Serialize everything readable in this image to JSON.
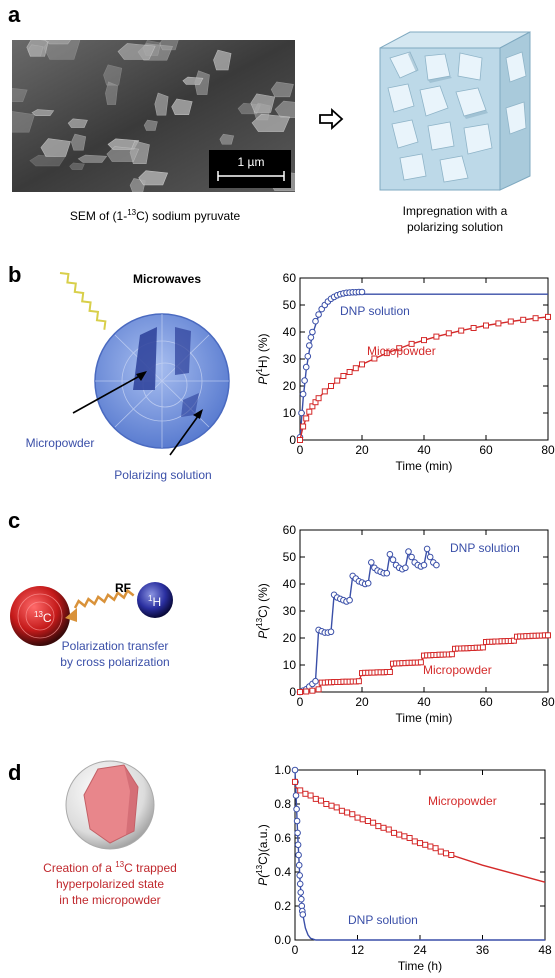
{
  "panels": {
    "a": {
      "letter": "a",
      "sem_scale": "1 µm",
      "sem_caption_pre": "SEM of (1-",
      "sem_caption_sup": "13",
      "sem_caption_post": "C) sodium pyruvate",
      "impregnation_line1": "Impregnation with a",
      "impregnation_line2": "polarizing solution"
    },
    "b": {
      "letter": "b",
      "microwaves": "Microwaves",
      "micropowder": "Micropowder",
      "polarizing_solution": "Polarizing solution"
    },
    "c": {
      "letter": "c",
      "rf": "RF",
      "carbon_label_sup": "13",
      "carbon_label": "C",
      "proton_label_sup": "1",
      "proton_label": "H",
      "transfer_line1": "Polarization transfer",
      "transfer_line2": "by cross polarization"
    },
    "d": {
      "letter": "d",
      "creation_line1_pre": "Creation of a ",
      "creation_line1_sup": "13",
      "creation_line1_post": "C trapped",
      "creation_line2": "hyperpolarized state",
      "creation_line3": "in the micropowder"
    }
  },
  "colors": {
    "dnp": "#3a4fa8",
    "micro": "#d42a2a",
    "caption_blue": "#3a4fa8",
    "caption_red": "#c0282d"
  },
  "chart_data": [
    {
      "type": "scatter",
      "id": "b",
      "ylabel_pre": "P(",
      "ylabel_sup": "1",
      "ylabel_post": "H) (%)",
      "xlabel": "Time (min)",
      "xlim": [
        0,
        80
      ],
      "ylim": [
        0,
        60
      ],
      "xticks": [
        "0",
        "20",
        "40",
        "60",
        "80"
      ],
      "yticks": [
        "0",
        "10",
        "20",
        "30",
        "40",
        "50",
        "60"
      ],
      "series": [
        {
          "name": "DNP solution",
          "x": [
            0,
            0.5,
            1,
            1.5,
            2,
            2.5,
            3,
            3.5,
            4,
            5,
            6,
            7,
            8,
            9,
            10,
            11,
            12,
            13,
            14,
            15,
            16,
            17,
            18,
            19,
            20
          ],
          "y": [
            1,
            10,
            17,
            22,
            27,
            31,
            35,
            38,
            40,
            44,
            46.5,
            48.5,
            50,
            51.3,
            52.3,
            53,
            53.6,
            54,
            54.3,
            54.5,
            54.6,
            54.7,
            54.7,
            54.8,
            54.8
          ],
          "fit_x": [
            0,
            1,
            2,
            3,
            4,
            6,
            8,
            10,
            12,
            15,
            20,
            40,
            80
          ],
          "fit_y": [
            0,
            15,
            26,
            33,
            39,
            46,
            50,
            52.3,
            53.4,
            53.9,
            54,
            54,
            54
          ]
        },
        {
          "name": "Micropowder",
          "x": [
            0,
            1,
            2,
            3,
            4,
            5,
            6,
            8,
            10,
            12,
            14,
            16,
            18,
            20,
            24,
            28,
            32,
            36,
            40,
            44,
            48,
            52,
            56,
            60,
            64,
            68,
            72,
            76,
            80
          ],
          "y": [
            0,
            5,
            8,
            10.5,
            12.5,
            14,
            15.5,
            18,
            20,
            22,
            23.7,
            25.2,
            26.6,
            28,
            30.2,
            32.2,
            34,
            35.6,
            37,
            38.3,
            39.5,
            40.5,
            41.5,
            42.4,
            43.2,
            43.9,
            44.5,
            45.1,
            45.6
          ],
          "fit_x": [
            0,
            1,
            2,
            4,
            6,
            8,
            10,
            14,
            20,
            28,
            36,
            44,
            52,
            60,
            68,
            76,
            80
          ],
          "fit_y": [
            0,
            5,
            8,
            12.5,
            15.5,
            18,
            20,
            23.7,
            28,
            32.2,
            35.6,
            38.3,
            40.5,
            42.4,
            43.9,
            45.1,
            45.6
          ]
        }
      ],
      "labels": [
        "DNP solution",
        "Micropowder"
      ]
    },
    {
      "type": "scatter",
      "id": "c",
      "ylabel_pre": "P(",
      "ylabel_sup": "13",
      "ylabel_post": "C) (%)",
      "xlabel": "Time (min)",
      "xlim": [
        0,
        80
      ],
      "ylim": [
        0,
        60
      ],
      "xticks": [
        "0",
        "20",
        "40",
        "60",
        "80"
      ],
      "yticks": [
        "0",
        "10",
        "20",
        "30",
        "40",
        "50",
        "60"
      ],
      "series": [
        {
          "name": "DNP solution",
          "x": [
            0,
            1,
            2,
            3,
            4,
            5,
            6,
            7,
            8,
            9,
            10,
            11,
            12,
            13,
            14,
            15,
            16,
            17,
            18,
            19,
            20,
            21,
            22,
            23,
            24,
            25,
            26,
            27,
            28,
            29,
            30,
            31,
            32,
            33,
            34,
            35,
            36,
            37,
            38,
            39,
            40,
            41,
            42,
            43,
            44
          ],
          "y": [
            0,
            0.5,
            1,
            2,
            3,
            4,
            23,
            22.5,
            22,
            22,
            22.3,
            36,
            35,
            34.5,
            34,
            33.5,
            34,
            43,
            42,
            41,
            40.5,
            40,
            40.3,
            48,
            46,
            45,
            44.5,
            44,
            44,
            51,
            49,
            47,
            46,
            45.5,
            46,
            52,
            50,
            48,
            47,
            46.5,
            47,
            53,
            50,
            48,
            47
          ]
        },
        {
          "name": "Micropowder",
          "x": [
            0,
            2,
            4,
            6,
            7,
            8,
            9,
            10,
            11,
            12,
            13,
            14,
            15,
            16,
            17,
            18,
            19,
            20,
            21,
            22,
            23,
            24,
            25,
            26,
            27,
            28,
            29,
            30,
            31,
            32,
            33,
            34,
            35,
            36,
            37,
            38,
            39,
            40,
            41,
            42,
            43,
            44,
            45,
            46,
            47,
            48,
            49,
            50,
            51,
            52,
            53,
            54,
            55,
            56,
            57,
            58,
            59,
            60,
            61,
            62,
            63,
            64,
            65,
            66,
            67,
            68,
            69,
            70,
            71,
            72,
            73,
            74,
            75,
            76,
            77,
            78,
            79,
            80
          ],
          "y": [
            0,
            0.2,
            0.5,
            1,
            3.5,
            3.5,
            3.6,
            3.6,
            3.7,
            3.7,
            3.7,
            3.8,
            3.8,
            3.8,
            3.9,
            3.9,
            4,
            7,
            7.1,
            7.1,
            7.2,
            7.2,
            7.3,
            7.3,
            7.3,
            7.4,
            7.4,
            10.5,
            10.6,
            10.6,
            10.7,
            10.7,
            10.8,
            10.8,
            10.9,
            10.9,
            11,
            13.5,
            13.6,
            13.6,
            13.7,
            13.7,
            13.8,
            13.8,
            13.9,
            13.9,
            14,
            16,
            16.1,
            16.1,
            16.2,
            16.2,
            16.3,
            16.3,
            16.4,
            16.4,
            16.5,
            18.5,
            18.6,
            18.6,
            18.7,
            18.7,
            18.8,
            18.8,
            18.9,
            18.9,
            19,
            20.5,
            20.6,
            20.6,
            20.7,
            20.7,
            20.8,
            20.8,
            20.9,
            20.9,
            21,
            21
          ]
        }
      ],
      "labels": [
        "DNP solution",
        "Micropowder"
      ]
    },
    {
      "type": "scatter",
      "id": "d",
      "ylabel_pre": "P(",
      "ylabel_sup": "13",
      "ylabel_post": "C)(a.u.)",
      "xlabel": "Time (h)",
      "xlim": [
        0,
        48
      ],
      "ylim": [
        0,
        1.0
      ],
      "xticks": [
        "0",
        "12",
        "24",
        "36",
        "48"
      ],
      "yticks": [
        "0.0",
        "0.2",
        "0.4",
        "0.6",
        "0.8",
        "1.0"
      ],
      "series": [
        {
          "name": "DNP solution",
          "x": [
            0,
            0.1,
            0.2,
            0.3,
            0.4,
            0.5,
            0.6,
            0.7,
            0.8,
            0.9,
            1.0,
            1.1,
            1.2,
            1.3,
            1.4,
            1.5
          ],
          "y": [
            1.0,
            0.93,
            0.85,
            0.77,
            0.7,
            0.63,
            0.56,
            0.5,
            0.44,
            0.38,
            0.33,
            0.28,
            0.24,
            0.2,
            0.17,
            0.15
          ],
          "fit_x": [
            0,
            0.5,
            1,
            1.5,
            2,
            2.5,
            3,
            4,
            6,
            10,
            48
          ],
          "fit_y": [
            1.0,
            0.63,
            0.33,
            0.15,
            0.07,
            0.03,
            0.01,
            0,
            0,
            0,
            0
          ]
        },
        {
          "name": "Micropowder",
          "x": [
            0,
            1,
            2,
            3,
            4,
            5,
            6,
            7,
            8,
            9,
            10,
            11,
            12,
            13,
            14,
            15,
            16,
            17,
            18,
            19,
            20,
            21,
            22,
            23,
            24,
            25,
            26,
            27,
            28,
            29,
            30
          ],
          "y": [
            0.93,
            0.88,
            0.86,
            0.85,
            0.83,
            0.82,
            0.8,
            0.79,
            0.78,
            0.76,
            0.75,
            0.74,
            0.72,
            0.71,
            0.7,
            0.69,
            0.67,
            0.66,
            0.65,
            0.63,
            0.62,
            0.61,
            0.6,
            0.58,
            0.57,
            0.56,
            0.55,
            0.54,
            0.52,
            0.51,
            0.5
          ],
          "fit_x": [
            0,
            6,
            12,
            18,
            24,
            30,
            36,
            42,
            48
          ],
          "fit_y": [
            0.9,
            0.8,
            0.72,
            0.65,
            0.57,
            0.5,
            0.44,
            0.39,
            0.34
          ]
        }
      ],
      "labels": [
        "DNP solution",
        "Micropowder"
      ]
    }
  ]
}
